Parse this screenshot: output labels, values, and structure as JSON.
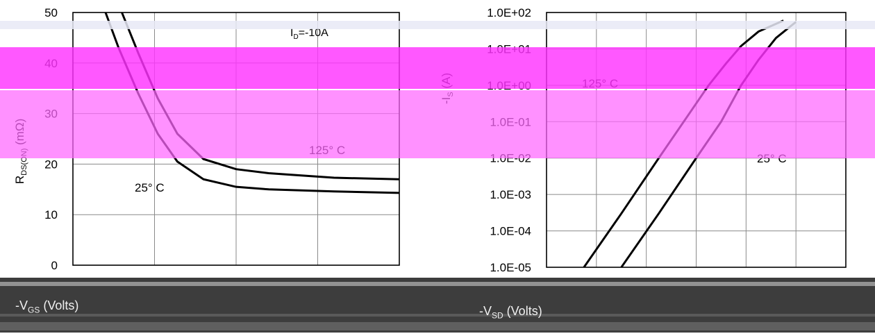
{
  "chart_data": [
    {
      "type": "line",
      "title": "",
      "xlabel": "-V",
      "xlabel_sub": "GS",
      "xlabel_unit": " (Volts)",
      "ylabel": "R",
      "ylabel_sub": "DS(ON)",
      "ylabel_unit": " (mΩ)",
      "ylim": [
        0,
        50
      ],
      "yticks": [
        "0",
        "10",
        "20",
        "30",
        "40",
        "50"
      ],
      "xlim": [
        0,
        10
      ],
      "condition_prefix": "I",
      "condition_sub": "D",
      "condition_value": "=-10A",
      "series": [
        {
          "name": "125° C",
          "x": [
            1.5,
            2.0,
            2.6,
            3.2,
            4.0,
            5.0,
            6.0,
            8.0,
            10.0
          ],
          "y": [
            50,
            42,
            33,
            26,
            21,
            19,
            18.2,
            17.3,
            17.0
          ]
        },
        {
          "name": "25° C",
          "x": [
            1.0,
            1.4,
            2.0,
            2.6,
            3.2,
            4.0,
            5.0,
            6.0,
            8.0,
            10.0
          ],
          "y": [
            50,
            43,
            34,
            26,
            20.5,
            17.0,
            15.5,
            15.0,
            14.6,
            14.3
          ]
        }
      ],
      "annotations": [
        "125° C",
        "25° C"
      ]
    },
    {
      "type": "line",
      "title": "",
      "xlabel": "-V",
      "xlabel_sub": "SD",
      "xlabel_unit": " (Volts)",
      "ylabel": "-I",
      "ylabel_sub": "S",
      "ylabel_unit": " (A)",
      "yscale": "log",
      "ylim": [
        1e-05,
        100
      ],
      "yticks": [
        "1.0E-05",
        "1.0E-04",
        "1.0E-03",
        "1.0E-02",
        "1.0E-01",
        "1.0E+00",
        "1.0E+01",
        "1.0E+02"
      ],
      "xlim": [
        0,
        1.2
      ],
      "series": [
        {
          "name": "125° C",
          "x": [
            0.15,
            0.3,
            0.45,
            0.55,
            0.65,
            0.72,
            0.78,
            0.85,
            0.95
          ],
          "y": [
            1e-05,
            0.0003,
            0.01,
            0.1,
            1,
            4,
            12,
            30,
            60
          ]
        },
        {
          "name": "25° C",
          "x": [
            0.3,
            0.45,
            0.6,
            0.7,
            0.78,
            0.85,
            0.92,
            1.0
          ],
          "y": [
            1e-05,
            0.0003,
            0.01,
            0.1,
            1,
            5,
            20,
            55
          ]
        }
      ],
      "annotations": [
        "125° C",
        "25° C"
      ]
    }
  ]
}
